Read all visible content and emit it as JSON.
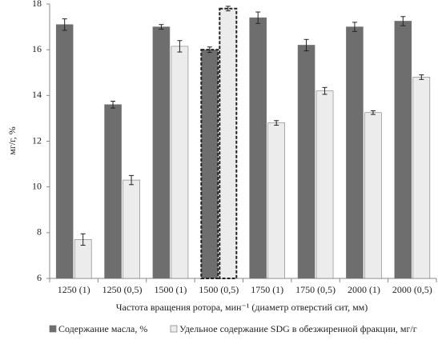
{
  "chart_data": {
    "type": "bar",
    "y_label": "мг/г, %",
    "x_label": "Частота вращения ротора, мин⁻¹ (диаметр отверстий сит, мм)",
    "categories": [
      "1250 (1)",
      "1250 (0,5)",
      "1500 (1)",
      "1500 (0,5)",
      "1750 (1)",
      "1750 (0,5)",
      "2000 (1)",
      "2000 (0,5)"
    ],
    "series": [
      {
        "name": "Содержание масла, %",
        "color": "#6e6e6e",
        "values": [
          17.1,
          13.6,
          17.0,
          16.0,
          17.4,
          16.2,
          17.0,
          17.25
        ],
        "errors": [
          0.25,
          0.15,
          0.1,
          0.12,
          0.25,
          0.25,
          0.2,
          0.2
        ]
      },
      {
        "name": "Удельное содержание SDG в обезжиренной фракции, мг/г",
        "color": "#ececec",
        "values": [
          7.7,
          10.3,
          16.15,
          17.8,
          12.8,
          14.2,
          13.25,
          14.8
        ],
        "errors": [
          0.25,
          0.2,
          0.25,
          0.1,
          0.1,
          0.15,
          0.08,
          0.1
        ]
      }
    ],
    "highlight": 3,
    "ylim": [
      6,
      18
    ],
    "yticks": [
      6,
      8,
      10,
      12,
      14,
      16,
      18
    ],
    "legend": "bottom"
  }
}
